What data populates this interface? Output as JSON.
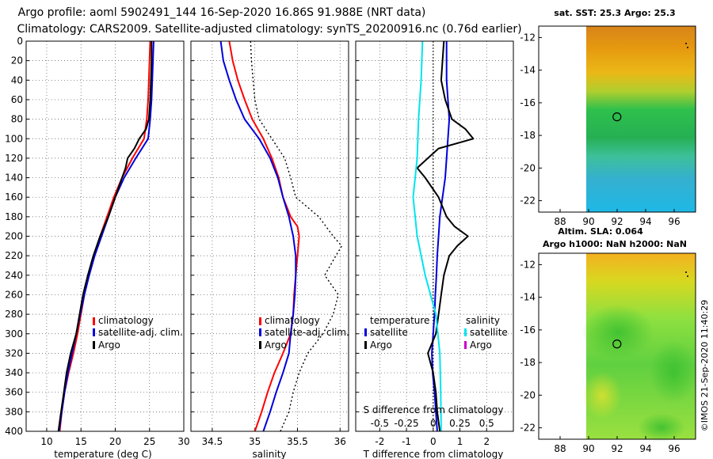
{
  "header": {
    "title_line1": "Argo profile: aoml 5902491_144 16-Sep-2020 16.86S 91.988E (NRT data)",
    "title_line2": "Climatology: CARS2009. Satellite-adjusted climatology: synTS_20200916.nc (0.76d earlier)"
  },
  "depth_axis": {
    "ticks": [
      "0",
      "20",
      "40",
      "60",
      "80",
      "100",
      "120",
      "140",
      "160",
      "180",
      "200",
      "220",
      "240",
      "260",
      "280",
      "300",
      "320",
      "340",
      "360",
      "380",
      "400"
    ]
  },
  "colors": {
    "climatology": "#ff0000",
    "satellite": "#0000dd",
    "argo": "#000000",
    "satellite_salinity": "#00e5ee",
    "argo_salinity": "#cc00cc"
  },
  "watermark": "©IMOS 21-Sep-2020 11:40:29",
  "chart_data": [
    {
      "id": "temperature",
      "type": "line",
      "xlabel": "temperature (deg C)",
      "ylabel": "depth",
      "xlim": [
        7,
        30
      ],
      "ylim": [
        400,
        0
      ],
      "xticks": [
        "10",
        "15",
        "20",
        "25",
        "30"
      ],
      "legend": [
        "climatology",
        "satellite-adj. clim.",
        "Argo"
      ],
      "series": [
        {
          "name": "climatology",
          "color": "#ff0000",
          "depth": [
            0,
            20,
            40,
            60,
            80,
            100,
            120,
            140,
            160,
            180,
            200,
            220,
            240,
            260,
            280,
            300,
            320,
            340,
            360,
            380,
            400
          ],
          "values": [
            25.1,
            25.0,
            24.9,
            24.8,
            24.6,
            24.2,
            22.5,
            21.0,
            19.8,
            18.8,
            17.8,
            16.9,
            16.1,
            15.5,
            15.0,
            14.5,
            13.9,
            13.2,
            12.6,
            12.2,
            11.9
          ]
        },
        {
          "name": "satellite-adj. clim.",
          "color": "#0000dd",
          "depth": [
            0,
            20,
            40,
            60,
            80,
            100,
            120,
            140,
            160,
            180,
            200,
            220,
            240,
            260,
            280,
            300,
            320,
            340,
            360,
            380,
            400
          ],
          "values": [
            25.6,
            25.5,
            25.4,
            25.3,
            25.1,
            24.8,
            23.0,
            21.3,
            20.0,
            19.0,
            18.0,
            17.0,
            16.2,
            15.5,
            14.9,
            14.3,
            13.7,
            13.1,
            12.6,
            12.2,
            11.8
          ]
        },
        {
          "name": "Argo",
          "color": "#000000",
          "depth": [
            0,
            20,
            40,
            60,
            80,
            90,
            100,
            110,
            120,
            130,
            140,
            160,
            180,
            200,
            220,
            240,
            260,
            280,
            300,
            320,
            340,
            360,
            380,
            400
          ],
          "values": [
            25.3,
            25.3,
            25.2,
            25.1,
            24.9,
            24.5,
            23.5,
            22.8,
            21.8,
            21.5,
            21.0,
            20.0,
            19.0,
            17.8,
            16.8,
            16.0,
            15.3,
            14.8,
            14.3,
            13.5,
            12.9,
            12.5,
            12.1,
            11.7
          ]
        }
      ]
    },
    {
      "id": "salinity",
      "type": "line",
      "xlabel": "salinity",
      "ylabel": "depth",
      "xlim": [
        34.25,
        36.1
      ],
      "ylim": [
        400,
        0
      ],
      "xticks": [
        "34.5",
        "35",
        "35.5",
        "36"
      ],
      "legend": [
        "climatology",
        "satellite-adj. clim.",
        "Argo"
      ],
      "series": [
        {
          "name": "climatology",
          "color": "#ff0000",
          "depth": [
            0,
            20,
            40,
            60,
            80,
            100,
            120,
            140,
            160,
            180,
            190,
            200,
            220,
            240,
            260,
            280,
            300,
            320,
            340,
            360,
            380,
            400
          ],
          "values": [
            34.7,
            34.74,
            34.8,
            34.88,
            34.97,
            35.1,
            35.2,
            35.28,
            35.33,
            35.42,
            35.5,
            35.52,
            35.5,
            35.48,
            35.46,
            35.45,
            35.42,
            35.33,
            35.23,
            35.15,
            35.08,
            35.0
          ]
        },
        {
          "name": "satellite-adj. clim.",
          "color": "#0000dd",
          "depth": [
            0,
            20,
            40,
            60,
            80,
            100,
            120,
            140,
            160,
            180,
            200,
            220,
            240,
            260,
            280,
            300,
            320,
            340,
            360,
            380,
            400
          ],
          "values": [
            34.6,
            34.63,
            34.7,
            34.78,
            34.88,
            35.05,
            35.18,
            35.27,
            35.33,
            35.4,
            35.45,
            35.48,
            35.48,
            35.47,
            35.45,
            35.42,
            35.4,
            35.33,
            35.25,
            35.18,
            35.1
          ]
        },
        {
          "name": "Argo",
          "color": "#000000",
          "dash": true,
          "depth": [
            0,
            20,
            40,
            60,
            80,
            100,
            120,
            140,
            160,
            180,
            200,
            210,
            220,
            240,
            260,
            280,
            300,
            320,
            340,
            360,
            380,
            400
          ],
          "values": [
            34.95,
            34.96,
            34.98,
            35.0,
            35.05,
            35.2,
            35.35,
            35.42,
            35.48,
            35.75,
            35.92,
            36.02,
            35.95,
            35.82,
            35.98,
            35.92,
            35.8,
            35.62,
            35.52,
            35.45,
            35.4,
            35.3
          ]
        }
      ]
    },
    {
      "id": "difference",
      "type": "line",
      "xlabel": "T difference from climatology",
      "x2label": "S difference from climatology",
      "ylabel": "depth",
      "xlim": [
        -2.9,
        3.0
      ],
      "ylim": [
        400,
        0
      ],
      "xticks": [
        "-2",
        "-1",
        "0",
        "1",
        "2"
      ],
      "x2ticks": [
        "-0.5",
        "-0.25",
        "0",
        "0.25",
        "0.5"
      ],
      "legend_temperature_title": "temperature",
      "legend_salinity_title": "salinity",
      "legend_temperature": [
        "satellite",
        "Argo"
      ],
      "legend_salinity": [
        "satellite",
        "Argo"
      ],
      "series": [
        {
          "name": "temperature satellite",
          "color": "#0000dd",
          "depth": [
            0,
            40,
            80,
            100,
            120,
            140,
            160,
            180,
            200,
            220,
            240,
            260,
            280,
            300,
            320,
            340,
            360,
            380,
            400
          ],
          "values": [
            0.5,
            0.5,
            0.6,
            0.55,
            0.5,
            0.45,
            0.35,
            0.25,
            0.2,
            0.15,
            0.12,
            0.08,
            0.05,
            0.0,
            -0.05,
            -0.02,
            0.05,
            0.1,
            0.15
          ]
        },
        {
          "name": "temperature Argo",
          "color": "#000000",
          "depth": [
            0,
            20,
            40,
            60,
            80,
            90,
            100,
            110,
            120,
            130,
            140,
            160,
            180,
            190,
            200,
            210,
            220,
            240,
            260,
            280,
            300,
            320,
            340,
            360,
            380,
            400
          ],
          "values": [
            0.4,
            0.35,
            0.3,
            0.45,
            0.7,
            1.2,
            1.5,
            0.2,
            -0.2,
            -0.6,
            -0.3,
            0.2,
            0.5,
            0.8,
            1.3,
            0.9,
            0.6,
            0.4,
            0.3,
            0.2,
            0.1,
            -0.2,
            0.0,
            0.1,
            0.15,
            0.25
          ]
        },
        {
          "name": "salinity satellite",
          "color": "#00e5ee",
          "depth": [
            0,
            40,
            80,
            120,
            160,
            200,
            240,
            280,
            320,
            360,
            400
          ],
          "values": [
            -0.4,
            -0.45,
            -0.55,
            -0.6,
            -0.75,
            -0.6,
            -0.3,
            0.1,
            0.25,
            0.28,
            0.3
          ]
        }
      ]
    }
  ],
  "maps": [
    {
      "id": "sst-map",
      "title": "sat. SST: 25.3 Argo: 25.3",
      "x_ticks": [
        "88",
        "90",
        "92",
        "94",
        "96"
      ],
      "y_ticks": [
        "-12",
        "-14",
        "-16",
        "-18",
        "-20",
        "-22"
      ],
      "lon_range": [
        86.5,
        97.5
      ],
      "lat_range": [
        -22.7,
        -11.3
      ],
      "argo_position": {
        "lon": 91.988,
        "lat": -16.86
      }
    },
    {
      "id": "sla-map",
      "title_line1": "Altim. SLA: 0.064",
      "title_line2": "Argo h1000: NaN h2000: NaN",
      "x_ticks": [
        "88",
        "90",
        "92",
        "94",
        "96"
      ],
      "y_ticks": [
        "-12",
        "-14",
        "-16",
        "-18",
        "-20",
        "-22"
      ],
      "lon_range": [
        86.5,
        97.5
      ],
      "lat_range": [
        -22.7,
        -11.3
      ],
      "argo_position": {
        "lon": 91.988,
        "lat": -16.86
      }
    }
  ]
}
